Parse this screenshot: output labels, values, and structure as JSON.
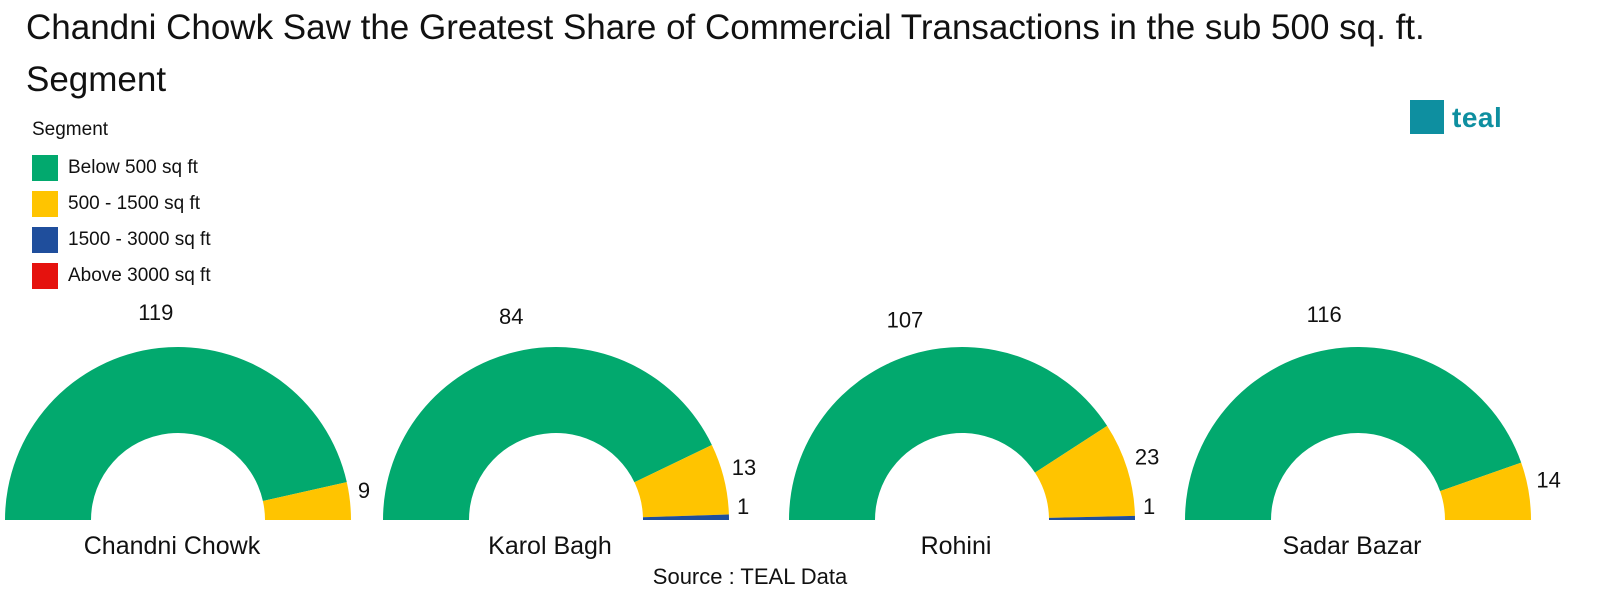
{
  "title": "Chandni Chowk Saw the Greatest Share of Commercial Transactions in the sub 500 sq. ft. Segment",
  "logo": {
    "text": "teal",
    "color": "#0e8fa0"
  },
  "legend": {
    "title": "Segment",
    "items": [
      {
        "label": "Below 500 sq ft",
        "color": "#02a96e"
      },
      {
        "label": "500 - 1500 sq ft",
        "color": "#ffc400"
      },
      {
        "label": "1500 - 3000 sq ft",
        "color": "#1f4e9c"
      },
      {
        "label": "Above 3000 sq ft",
        "color": "#e5120e"
      }
    ]
  },
  "source": "Source : TEAL Data",
  "chart_data": [
    {
      "type": "pie",
      "title": "Chandni Chowk",
      "categories": [
        "Below 500 sq ft",
        "500 - 1500 sq ft",
        "1500 - 3000 sq ft",
        "Above 3000 sq ft"
      ],
      "values": [
        119,
        9,
        0,
        0
      ],
      "data_labels": [
        "119",
        "9",
        "",
        ""
      ]
    },
    {
      "type": "pie",
      "title": "Karol Bagh",
      "categories": [
        "Below 500 sq ft",
        "500 - 1500 sq ft",
        "1500 - 3000 sq ft",
        "Above 3000 sq ft"
      ],
      "values": [
        84,
        13,
        1,
        0
      ],
      "data_labels": [
        "84",
        "13",
        "1",
        ""
      ]
    },
    {
      "type": "pie",
      "title": "Rohini",
      "categories": [
        "Below 500 sq ft",
        "500 - 1500 sq ft",
        "1500 - 3000 sq ft",
        "Above 3000 sq ft"
      ],
      "values": [
        107,
        23,
        1,
        0
      ],
      "data_labels": [
        "107",
        "23",
        "1",
        ""
      ]
    },
    {
      "type": "pie",
      "title": "Sadar Bazar",
      "categories": [
        "Below 500 sq ft",
        "500 - 1500 sq ft",
        "1500 - 3000 sq ft",
        "Above 3000 sq ft"
      ],
      "values": [
        116,
        14,
        0,
        0
      ],
      "data_labels": [
        "116",
        "14",
        "",
        ""
      ]
    }
  ]
}
